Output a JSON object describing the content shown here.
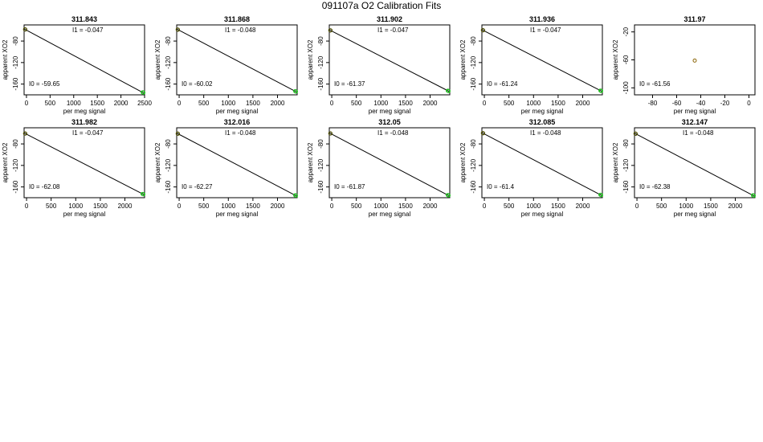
{
  "page_title": "091107a   O2 Calibration Fits",
  "chart_data": [
    {
      "type": "scatter",
      "title": "311.843",
      "xlabel": "per meg signal",
      "ylabel": "apparent XO2",
      "xlim": [
        -50,
        2500
      ],
      "ylim": [
        -180,
        -50
      ],
      "xticks": [
        "0",
        "500",
        "1000",
        "1500",
        "2000",
        "2500"
      ],
      "xtick_values": [
        0,
        500,
        1000,
        1500,
        2000,
        2500
      ],
      "yticks": [
        "-160",
        "-120",
        "-80"
      ],
      "ytick_values": [
        -160,
        -120,
        -80
      ],
      "fit_line": [
        [
          -50,
          -57.3
        ],
        [
          2500,
          -177.5
        ]
      ],
      "points": [
        [
          -30,
          -58.2
        ],
        [
          -25,
          -58.5
        ],
        [
          2460,
          -175.4
        ],
        [
          2470,
          -175.8
        ],
        [
          2475,
          -176.1
        ]
      ],
      "annotations": {
        "I1": "I1 =  -0.047",
        "I0": "I0 =  -59.65"
      }
    },
    {
      "type": "scatter",
      "title": "311.868",
      "xlabel": "per meg signal",
      "ylabel": "apparent XO2",
      "xlim": [
        -50,
        2400
      ],
      "ylim": [
        -180,
        -50
      ],
      "xticks": [
        "0",
        "500",
        "1000",
        "1500",
        "2000"
      ],
      "xtick_values": [
        0,
        500,
        1000,
        1500,
        2000
      ],
      "yticks": [
        "-160",
        "-120",
        "-80"
      ],
      "ytick_values": [
        -160,
        -120,
        -80
      ],
      "fit_line": [
        [
          -50,
          -57.6
        ],
        [
          2400,
          -175.2
        ]
      ],
      "points": [
        [
          -30,
          -58.6
        ],
        [
          -25,
          -58.9
        ],
        [
          2360,
          -173.3
        ],
        [
          2370,
          -173.7
        ],
        [
          2375,
          -174.0
        ]
      ],
      "annotations": {
        "I1": "I1 =  -0.048",
        "I0": "I0 =  -60.02"
      }
    },
    {
      "type": "scatter",
      "title": "311.902",
      "xlabel": "per meg signal",
      "ylabel": "apparent XO2",
      "xlim": [
        -50,
        2400
      ],
      "ylim": [
        -180,
        -50
      ],
      "xticks": [
        "0",
        "500",
        "1000",
        "1500",
        "2000"
      ],
      "xtick_values": [
        0,
        500,
        1000,
        1500,
        2000
      ],
      "yticks": [
        "-160",
        "-120",
        "-80"
      ],
      "ytick_values": [
        -160,
        -120,
        -80
      ],
      "fit_line": [
        [
          -50,
          -59.0
        ],
        [
          2400,
          -174.2
        ]
      ],
      "points": [
        [
          -30,
          -60.0
        ],
        [
          -25,
          -60.2
        ],
        [
          2360,
          -172.3
        ],
        [
          2370,
          -172.7
        ],
        [
          2375,
          -173.0
        ]
      ],
      "annotations": {
        "I1": "I1 =  -0.047",
        "I0": "I0 =  -61.37"
      }
    },
    {
      "type": "scatter",
      "title": "311.936",
      "xlabel": "per meg signal",
      "ylabel": "apparent XO2",
      "xlim": [
        -50,
        2400
      ],
      "ylim": [
        -180,
        -50
      ],
      "xticks": [
        "0",
        "500",
        "1000",
        "1500",
        "2000"
      ],
      "xtick_values": [
        0,
        500,
        1000,
        1500,
        2000
      ],
      "yticks": [
        "-160",
        "-120",
        "-80"
      ],
      "ytick_values": [
        -160,
        -120,
        -80
      ],
      "fit_line": [
        [
          -50,
          -58.9
        ],
        [
          2400,
          -174.0
        ]
      ],
      "points": [
        [
          -30,
          -59.8
        ],
        [
          -25,
          -60.1
        ],
        [
          2360,
          -172.2
        ],
        [
          2370,
          -172.6
        ],
        [
          2375,
          -172.9
        ]
      ],
      "annotations": {
        "I1": "I1 =  -0.047",
        "I0": "I0 =  -61.24"
      }
    },
    {
      "type": "scatter",
      "title": "311.97",
      "xlabel": "per meg signal",
      "ylabel": "apparent XO2",
      "xlim": [
        -95,
        5
      ],
      "ylim": [
        -110,
        -10
      ],
      "xticks": [
        "-80",
        "-60",
        "-40",
        "-20",
        "0"
      ],
      "xtick_values": [
        -80,
        -60,
        -40,
        -20,
        0
      ],
      "yticks": [
        "-100",
        "-60",
        "-20"
      ],
      "ytick_values": [
        -100,
        -60,
        -20
      ],
      "fit_line": [],
      "points": [
        [
          -45,
          -61
        ]
      ],
      "annotations": {
        "I1": "",
        "I0": "I0 =  -61.56"
      }
    },
    {
      "type": "scatter",
      "title": "311.982",
      "xlabel": "per meg signal",
      "ylabel": "apparent XO2",
      "xlim": [
        -50,
        2400
      ],
      "ylim": [
        -180,
        -50
      ],
      "xticks": [
        "0",
        "500",
        "1000",
        "1500",
        "2000"
      ],
      "xtick_values": [
        0,
        500,
        1000,
        1500,
        2000
      ],
      "yticks": [
        "-160",
        "-120",
        "-80"
      ],
      "ytick_values": [
        -160,
        -120,
        -80
      ],
      "fit_line": [
        [
          -50,
          -59.7
        ],
        [
          2400,
          -174.8
        ]
      ],
      "points": [
        [
          -30,
          -60.6
        ],
        [
          -25,
          -60.9
        ],
        [
          2360,
          -173.0
        ],
        [
          2370,
          -173.4
        ],
        [
          2375,
          -173.7
        ]
      ],
      "annotations": {
        "I1": "I1 =  -0.047",
        "I0": "I0 =  -62.08"
      }
    },
    {
      "type": "scatter",
      "title": "312.016",
      "xlabel": "per meg signal",
      "ylabel": "apparent XO2",
      "xlim": [
        -50,
        2400
      ],
      "ylim": [
        -180,
        -50
      ],
      "xticks": [
        "0",
        "500",
        "1000",
        "1500",
        "2000"
      ],
      "xtick_values": [
        0,
        500,
        1000,
        1500,
        2000
      ],
      "yticks": [
        "-160",
        "-120",
        "-80"
      ],
      "ytick_values": [
        -160,
        -120,
        -80
      ],
      "fit_line": [
        [
          -50,
          -59.9
        ],
        [
          2400,
          -177.5
        ]
      ],
      "points": [
        [
          -30,
          -60.8
        ],
        [
          -25,
          -61.1
        ],
        [
          2360,
          -175.5
        ],
        [
          2370,
          -175.9
        ],
        [
          2375,
          -176.2
        ]
      ],
      "annotations": {
        "I1": "I1 =  -0.048",
        "I0": "I0 =  -62.27"
      }
    },
    {
      "type": "scatter",
      "title": "312.05",
      "xlabel": "per meg signal",
      "ylabel": "apparent XO2",
      "xlim": [
        -50,
        2400
      ],
      "ylim": [
        -180,
        -50
      ],
      "xticks": [
        "0",
        "500",
        "1000",
        "1500",
        "2000"
      ],
      "xtick_values": [
        0,
        500,
        1000,
        1500,
        2000
      ],
      "yticks": [
        "-160",
        "-120",
        "-80"
      ],
      "ytick_values": [
        -160,
        -120,
        -80
      ],
      "fit_line": [
        [
          -50,
          -59.5
        ],
        [
          2400,
          -177.1
        ]
      ],
      "points": [
        [
          -30,
          -60.4
        ],
        [
          -25,
          -60.7
        ],
        [
          2360,
          -175.1
        ],
        [
          2370,
          -175.5
        ],
        [
          2375,
          -175.8
        ]
      ],
      "annotations": {
        "I1": "I1 =  -0.048",
        "I0": "I0 =  -61.87"
      }
    },
    {
      "type": "scatter",
      "title": "312.085",
      "xlabel": "per meg signal",
      "ylabel": "apparent XO2",
      "xlim": [
        -50,
        2400
      ],
      "ylim": [
        -180,
        -50
      ],
      "xticks": [
        "0",
        "500",
        "1000",
        "1500",
        "2000"
      ],
      "xtick_values": [
        0,
        500,
        1000,
        1500,
        2000
      ],
      "yticks": [
        "-160",
        "-120",
        "-80"
      ],
      "ytick_values": [
        -160,
        -120,
        -80
      ],
      "fit_line": [
        [
          -50,
          -59.0
        ],
        [
          2400,
          -176.6
        ]
      ],
      "points": [
        [
          -30,
          -59.9
        ],
        [
          -25,
          -60.2
        ],
        [
          2360,
          -174.6
        ],
        [
          2370,
          -175.0
        ],
        [
          2375,
          -175.3
        ]
      ],
      "annotations": {
        "I1": "I1 =  -0.048",
        "I0": "I0 =  -61.4"
      }
    },
    {
      "type": "scatter",
      "title": "312.147",
      "xlabel": "per meg signal",
      "ylabel": "apparent XO2",
      "xlim": [
        -50,
        2400
      ],
      "ylim": [
        -180,
        -50
      ],
      "xticks": [
        "0",
        "500",
        "1000",
        "1500",
        "2000"
      ],
      "xtick_values": [
        0,
        500,
        1000,
        1500,
        2000
      ],
      "yticks": [
        "-160",
        "-120",
        "-80"
      ],
      "ytick_values": [
        -160,
        -120,
        -80
      ],
      "fit_line": [
        [
          -50,
          -60.0
        ],
        [
          2400,
          -177.6
        ]
      ],
      "points": [
        [
          -30,
          -60.9
        ],
        [
          -25,
          -61.2
        ],
        [
          2360,
          -175.6
        ],
        [
          2370,
          -176.0
        ],
        [
          2375,
          -176.3
        ]
      ],
      "annotations": {
        "I1": "I1 =  -0.048",
        "I0": "I0 =  -62.38"
      }
    }
  ],
  "colors": {
    "fit_line": "#000000",
    "start_points": "#4a4a00",
    "end_points": "#22bb22",
    "single_point": "#8b6508"
  }
}
